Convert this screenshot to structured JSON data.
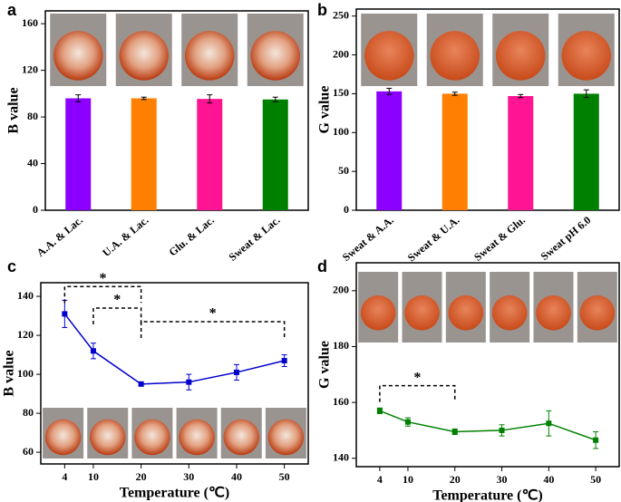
{
  "chart_data": [
    {
      "type": "bar",
      "panel": "a",
      "ylabel": "B value",
      "categories": [
        "A.A. & Lac.",
        "U.A. & Lac.",
        "Glu. & Lac.",
        "Sweat & Lac."
      ],
      "values": [
        96,
        96,
        95.5,
        95
      ],
      "errors": [
        3,
        1,
        3.5,
        2
      ],
      "colors": [
        "#8b00ff",
        "#ff8000",
        "#ff1493",
        "#008000"
      ],
      "ylim": [
        0,
        171
      ],
      "yticks": [
        0,
        40,
        80,
        120,
        160
      ]
    },
    {
      "type": "bar",
      "panel": "b",
      "ylabel": "G value",
      "categories": [
        "Sweat & A.A.",
        "Sweat & U.A.",
        "Sweat & Glu.",
        "Sweat pH 6.0"
      ],
      "values": [
        153,
        150,
        147,
        150
      ],
      "errors": [
        4,
        2,
        2,
        5
      ],
      "colors": [
        "#8b00ff",
        "#ff8000",
        "#ff1493",
        "#008000"
      ],
      "ylim": [
        0,
        259
      ],
      "yticks": [
        0,
        50,
        100,
        150,
        200,
        250
      ]
    },
    {
      "type": "line",
      "panel": "c",
      "ylabel": "B value",
      "xlabel": "Temperature (℃)",
      "x": [
        4,
        10,
        20,
        30,
        40,
        50
      ],
      "values": [
        131,
        112,
        95,
        96,
        101,
        107
      ],
      "errors": [
        7,
        4,
        1,
        4,
        4,
        3
      ],
      "color": "#0000cc",
      "xlim": [
        -1,
        55
      ],
      "xticks": [
        4,
        10,
        20,
        30,
        40,
        50
      ],
      "ylim": [
        54,
        147
      ],
      "yticks": [
        60,
        80,
        100,
        120,
        140
      ],
      "annotations": [
        {
          "text": "*",
          "from": 4,
          "to": 20,
          "y": 145
        },
        {
          "text": "*",
          "from": 10,
          "to": 20,
          "y": 134
        },
        {
          "text": "*",
          "from": 20,
          "to": 50,
          "y": 127
        }
      ]
    },
    {
      "type": "line",
      "panel": "d",
      "ylabel": "G value",
      "xlabel": "Temperature (℃)",
      "x": [
        4,
        10,
        20,
        30,
        40,
        50
      ],
      "values": [
        157,
        153,
        149.5,
        150,
        152.5,
        146.5
      ],
      "errors": [
        1,
        1.5,
        1,
        2,
        4.5,
        3
      ],
      "color": "#008000",
      "xlim": [
        -1,
        55
      ],
      "xticks": [
        4,
        10,
        20,
        30,
        40,
        50
      ],
      "ylim": [
        137,
        210
      ],
      "yticks": [
        140,
        160,
        180,
        200
      ],
      "annotations": [
        {
          "text": "*",
          "from": 4,
          "to": 20,
          "y": 166
        }
      ]
    }
  ]
}
